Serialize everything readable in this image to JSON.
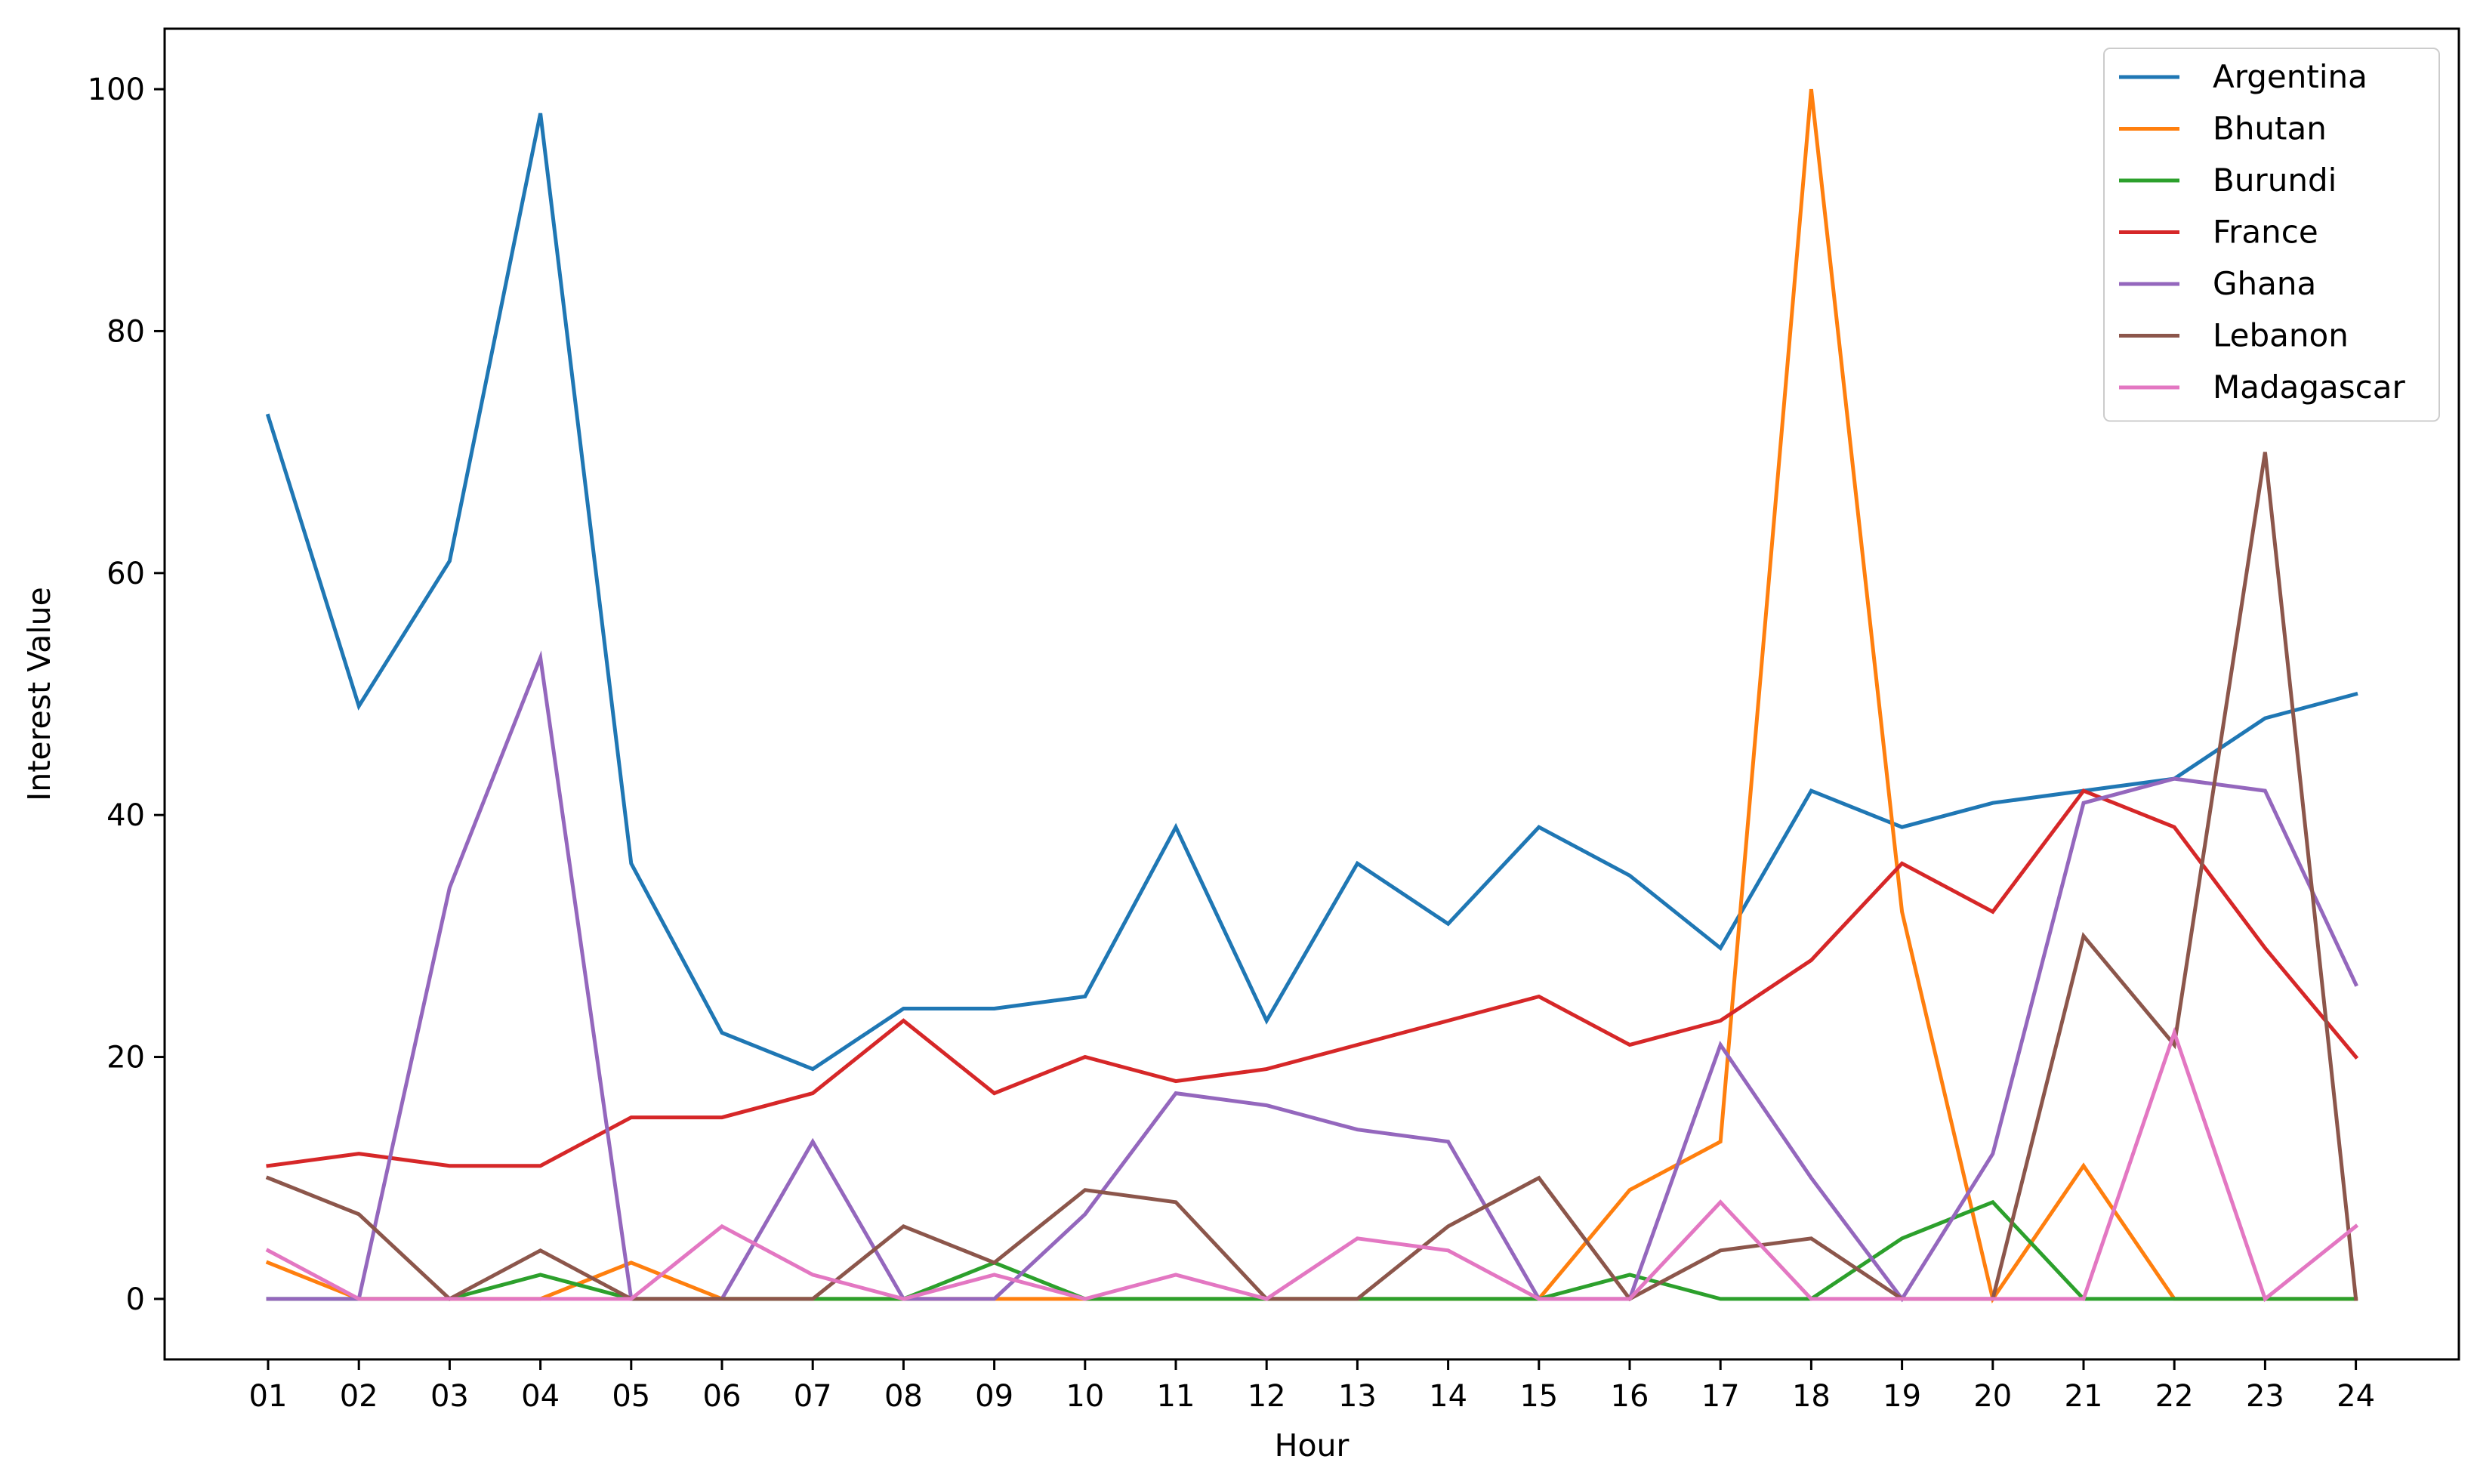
{
  "chart_data": {
    "type": "line",
    "title": "",
    "xlabel": "Hour",
    "ylabel": "Interest Value",
    "categories": [
      "01",
      "02",
      "03",
      "04",
      "05",
      "06",
      "07",
      "08",
      "09",
      "10",
      "11",
      "12",
      "13",
      "14",
      "15",
      "16",
      "17",
      "18",
      "19",
      "20",
      "21",
      "22",
      "23",
      "24"
    ],
    "ylim": [
      -5,
      105
    ],
    "yticks": [
      0,
      20,
      40,
      60,
      80,
      100
    ],
    "grid": false,
    "legend_position": "top-right",
    "series": [
      {
        "name": "Argentina",
        "color": "#1f77b4",
        "values": [
          73,
          49,
          61,
          98,
          36,
          22,
          19,
          24,
          24,
          25,
          39,
          23,
          36,
          31,
          39,
          35,
          29,
          42,
          39,
          41,
          42,
          43,
          48,
          50
        ]
      },
      {
        "name": "Bhutan",
        "color": "#ff7f0e",
        "values": [
          3,
          0,
          0,
          0,
          3,
          0,
          0,
          0,
          0,
          0,
          0,
          0,
          0,
          0,
          0,
          9,
          13,
          100,
          32,
          0,
          11,
          0,
          0,
          0
        ]
      },
      {
        "name": "Burundi",
        "color": "#2ca02c",
        "values": [
          0,
          0,
          0,
          2,
          0,
          0,
          0,
          0,
          3,
          0,
          0,
          0,
          0,
          0,
          0,
          2,
          0,
          0,
          5,
          8,
          0,
          0,
          0,
          0
        ]
      },
      {
        "name": "France",
        "color": "#d62728",
        "values": [
          11,
          12,
          11,
          11,
          15,
          15,
          17,
          23,
          17,
          20,
          18,
          19,
          21,
          23,
          25,
          21,
          23,
          28,
          36,
          32,
          42,
          39,
          29,
          20
        ]
      },
      {
        "name": "Ghana",
        "color": "#9467bd",
        "values": [
          0,
          0,
          34,
          53,
          0,
          0,
          13,
          0,
          0,
          7,
          17,
          16,
          14,
          13,
          0,
          0,
          21,
          10,
          0,
          12,
          41,
          43,
          42,
          26
        ]
      },
      {
        "name": "Lebanon",
        "color": "#8c564b",
        "values": [
          10,
          7,
          0,
          4,
          0,
          0,
          0,
          6,
          3,
          9,
          8,
          0,
          0,
          6,
          10,
          0,
          4,
          5,
          0,
          0,
          30,
          21,
          70,
          0
        ]
      },
      {
        "name": "Madagascar",
        "color": "#e377c2",
        "values": [
          4,
          0,
          0,
          0,
          0,
          6,
          2,
          0,
          2,
          0,
          2,
          0,
          5,
          4,
          0,
          0,
          8,
          0,
          0,
          0,
          0,
          22,
          0,
          6
        ]
      }
    ]
  }
}
